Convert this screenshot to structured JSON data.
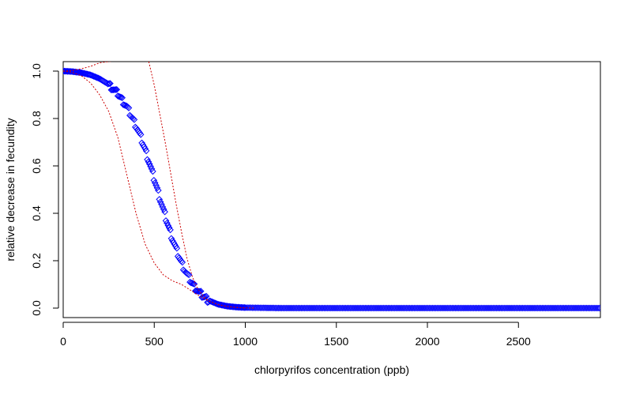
{
  "chart_data": {
    "type": "scatter",
    "title": "",
    "xlabel": "chlorpyrifos concentration (ppb)",
    "ylabel": "relative decrease in fecundity",
    "xlim": [
      0,
      2950
    ],
    "ylim": [
      -0.04,
      1.04
    ],
    "xticks": [
      0,
      500,
      1000,
      1500,
      2000,
      2500
    ],
    "xtick_labels": [
      "0",
      "500",
      "1000",
      "1500",
      "2000",
      "2500"
    ],
    "yticks": [
      0.0,
      0.2,
      0.4,
      0.6,
      0.8,
      1.0
    ],
    "ytick_labels": [
      "0.0",
      "0.2",
      "0.4",
      "0.6",
      "0.8",
      "1.0"
    ],
    "grid": false,
    "legend": "none",
    "series": [
      {
        "role": "points",
        "marker": "open-diamond",
        "color": "#0000ff",
        "x": [
          0,
          50,
          100,
          150,
          200,
          250,
          300,
          350,
          400,
          425,
          450,
          475,
          500,
          525,
          550,
          575,
          600,
          625,
          650,
          675,
          700,
          725,
          750,
          775,
          800,
          850,
          900,
          950,
          1000,
          1100,
          1200,
          1400,
          1600,
          1800,
          2000,
          2200,
          2400,
          2600,
          2800,
          2950
        ],
        "y": [
          1.0,
          0.998,
          0.993,
          0.984,
          0.968,
          0.944,
          0.905,
          0.848,
          0.77,
          0.722,
          0.668,
          0.608,
          0.544,
          0.479,
          0.414,
          0.351,
          0.292,
          0.238,
          0.19,
          0.149,
          0.114,
          0.086,
          0.063,
          0.046,
          0.032,
          0.016,
          0.008,
          0.004,
          0.002,
          0.001,
          0.0,
          0.0,
          0.0,
          0.0,
          0.0,
          0.0,
          0.0,
          0.0,
          0.0,
          0.0
        ]
      },
      {
        "role": "lower-bound",
        "line": "dotted",
        "color": "#cc0000",
        "x": [
          0,
          50,
          100,
          150,
          200,
          250,
          300,
          350,
          400,
          450,
          500,
          550,
          600,
          650,
          700,
          750,
          800,
          850,
          900,
          950,
          1000,
          1050
        ],
        "y": [
          1.0,
          0.995,
          0.98,
          0.95,
          0.9,
          0.83,
          0.72,
          0.56,
          0.4,
          0.27,
          0.19,
          0.14,
          0.115,
          0.1,
          0.075,
          0.05,
          0.03,
          0.015,
          0.007,
          0.003,
          0.001,
          0.0
        ]
      },
      {
        "role": "upper-bound",
        "line": "dotted",
        "color": "#cc0000",
        "x": [
          0,
          50,
          100,
          150,
          200,
          250,
          300
        ],
        "y": [
          1.0,
          1.002,
          1.01,
          1.02,
          1.035,
          1.04,
          1.045
        ]
      },
      {
        "role": "upper-bound",
        "line": "dotted",
        "color": "#cc0000",
        "x": [
          470,
          500,
          530,
          560,
          590,
          620,
          650,
          680,
          710,
          740,
          770,
          800,
          850,
          900,
          950,
          1000
        ],
        "y": [
          1.04,
          0.94,
          0.82,
          0.7,
          0.57,
          0.44,
          0.32,
          0.21,
          0.13,
          0.08,
          0.05,
          0.03,
          0.015,
          0.007,
          0.003,
          0.0
        ]
      }
    ]
  }
}
